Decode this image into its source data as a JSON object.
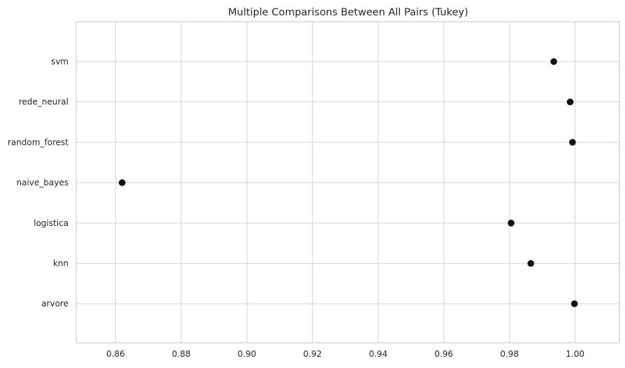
{
  "chart_data": {
    "type": "scatter",
    "title": "Multiple Comparisons Between All Pairs (Tukey)",
    "xlabel": "",
    "ylabel": "",
    "xlim": [
      0.848,
      1.0135
    ],
    "xticks": [
      0.86,
      0.88,
      0.9,
      0.92,
      0.94,
      0.96,
      0.98,
      1.0
    ],
    "xtick_labels": [
      "0.86",
      "0.88",
      "0.90",
      "0.92",
      "0.94",
      "0.96",
      "0.98",
      "1.00"
    ],
    "categories": [
      "svm",
      "rede_neural",
      "random_forest",
      "naive_bayes",
      "logistica",
      "knn",
      "arvore"
    ],
    "values": [
      0.9935,
      0.9985,
      0.9992,
      0.862,
      0.9805,
      0.9865,
      0.9998
    ],
    "grid": true,
    "marker_color": "#111111"
  }
}
